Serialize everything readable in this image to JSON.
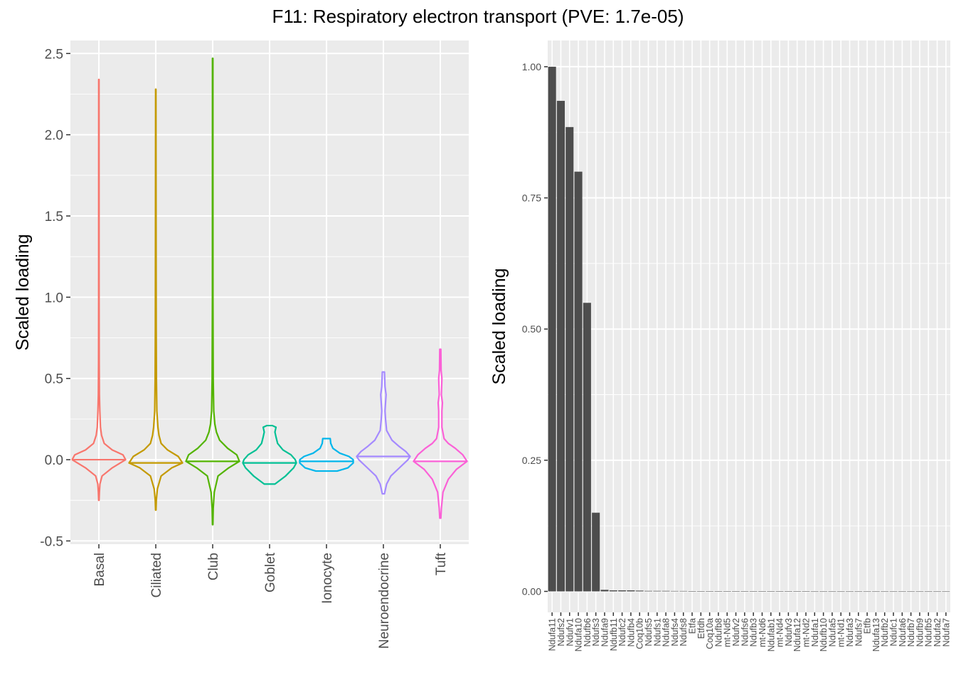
{
  "title": "F11: Respiratory electron transport (PVE: 1.7e-05)",
  "chart_data": [
    {
      "type": "violin",
      "ylabel": "Scaled loading",
      "xlabel": "",
      "ylim": [
        -0.52,
        2.58
      ],
      "yticks": [
        -0.5,
        0.0,
        0.5,
        1.0,
        1.5,
        2.0,
        2.5
      ],
      "ytick_labels": [
        "-0.5",
        "0.0",
        "0.5",
        "1.0",
        "1.5",
        "2.0",
        "2.5"
      ],
      "grid": true,
      "legend": "none",
      "categories": [
        "Basal",
        "Ciliated",
        "Club",
        "Goblet",
        "Ionocyte",
        "Neuroendocrine",
        "Tuft"
      ],
      "colors": [
        "#F8766D",
        "#C49A00",
        "#53B400",
        "#00C094",
        "#00B6EB",
        "#A58AFF",
        "#FB61D7"
      ],
      "violins": [
        {
          "category": "Basal",
          "min": -0.25,
          "max": 2.34,
          "median": 0.0,
          "profile": [
            [
              -0.25,
              0.004
            ],
            [
              -0.2,
              0.01
            ],
            [
              -0.15,
              0.02
            ],
            [
              -0.1,
              0.06
            ],
            [
              -0.05,
              0.25
            ],
            [
              0.0,
              0.5
            ],
            [
              0.03,
              0.45
            ],
            [
              0.06,
              0.25
            ],
            [
              0.1,
              0.1
            ],
            [
              0.15,
              0.05
            ],
            [
              0.2,
              0.03
            ],
            [
              0.3,
              0.018
            ],
            [
              0.4,
              0.01
            ],
            [
              0.6,
              0.006
            ],
            [
              1.0,
              0.004
            ],
            [
              2.34,
              0.003
            ]
          ]
        },
        {
          "category": "Ciliated",
          "min": -0.31,
          "max": 2.28,
          "median": -0.02,
          "profile": [
            [
              -0.31,
              0.004
            ],
            [
              -0.25,
              0.01
            ],
            [
              -0.18,
              0.03
            ],
            [
              -0.1,
              0.1
            ],
            [
              -0.05,
              0.3
            ],
            [
              -0.02,
              0.5
            ],
            [
              0.02,
              0.42
            ],
            [
              0.06,
              0.22
            ],
            [
              0.1,
              0.1
            ],
            [
              0.15,
              0.06
            ],
            [
              0.2,
              0.04
            ],
            [
              0.3,
              0.02
            ],
            [
              0.5,
              0.012
            ],
            [
              0.8,
              0.008
            ],
            [
              1.3,
              0.006
            ],
            [
              2.28,
              0.003
            ]
          ]
        },
        {
          "category": "Club",
          "min": -0.4,
          "max": 2.47,
          "median": -0.01,
          "profile": [
            [
              -0.4,
              0.004
            ],
            [
              -0.3,
              0.01
            ],
            [
              -0.2,
              0.03
            ],
            [
              -0.1,
              0.1
            ],
            [
              -0.05,
              0.3
            ],
            [
              -0.01,
              0.5
            ],
            [
              0.03,
              0.45
            ],
            [
              0.07,
              0.28
            ],
            [
              0.12,
              0.13
            ],
            [
              0.17,
              0.07
            ],
            [
              0.22,
              0.04
            ],
            [
              0.3,
              0.02
            ],
            [
              0.5,
              0.01
            ],
            [
              1.0,
              0.005
            ],
            [
              2.47,
              0.004
            ]
          ]
        },
        {
          "category": "Goblet",
          "min": -0.15,
          "max": 0.21,
          "median": -0.02,
          "profile": [
            [
              -0.15,
              0.1
            ],
            [
              -0.1,
              0.3
            ],
            [
              -0.05,
              0.45
            ],
            [
              -0.02,
              0.5
            ],
            [
              0.0,
              0.48
            ],
            [
              0.03,
              0.4
            ],
            [
              0.06,
              0.25
            ],
            [
              0.1,
              0.15
            ],
            [
              0.14,
              0.12
            ],
            [
              0.17,
              0.1
            ],
            [
              0.2,
              0.12
            ],
            [
              0.21,
              0.05
            ]
          ]
        },
        {
          "category": "Ionocyte",
          "min": -0.07,
          "max": 0.13,
          "median": -0.01,
          "profile": [
            [
              -0.07,
              0.2
            ],
            [
              -0.05,
              0.4
            ],
            [
              -0.02,
              0.5
            ],
            [
              0.0,
              0.5
            ],
            [
              0.02,
              0.42
            ],
            [
              0.04,
              0.25
            ],
            [
              0.07,
              0.12
            ],
            [
              0.1,
              0.08
            ],
            [
              0.13,
              0.07
            ]
          ]
        },
        {
          "category": "Neuroendocrine",
          "min": -0.21,
          "max": 0.54,
          "median": 0.02,
          "profile": [
            [
              -0.21,
              0.02
            ],
            [
              -0.15,
              0.06
            ],
            [
              -0.1,
              0.14
            ],
            [
              -0.05,
              0.3
            ],
            [
              0.0,
              0.46
            ],
            [
              0.02,
              0.5
            ],
            [
              0.05,
              0.42
            ],
            [
              0.08,
              0.3
            ],
            [
              0.12,
              0.16
            ],
            [
              0.18,
              0.06
            ],
            [
              0.25,
              0.04
            ],
            [
              0.3,
              0.03
            ],
            [
              0.35,
              0.04
            ],
            [
              0.4,
              0.05
            ],
            [
              0.45,
              0.03
            ],
            [
              0.54,
              0.02
            ]
          ]
        },
        {
          "category": "Tuft",
          "min": -0.36,
          "max": 0.68,
          "median": -0.01,
          "profile": [
            [
              -0.36,
              0.01
            ],
            [
              -0.3,
              0.02
            ],
            [
              -0.2,
              0.05
            ],
            [
              -0.12,
              0.15
            ],
            [
              -0.06,
              0.3
            ],
            [
              -0.01,
              0.5
            ],
            [
              0.03,
              0.42
            ],
            [
              0.07,
              0.28
            ],
            [
              0.1,
              0.15
            ],
            [
              0.13,
              0.07
            ],
            [
              0.2,
              0.03
            ],
            [
              0.3,
              0.03
            ],
            [
              0.35,
              0.04
            ],
            [
              0.4,
              0.02
            ],
            [
              0.5,
              0.03
            ],
            [
              0.55,
              0.015
            ],
            [
              0.68,
              0.01
            ]
          ]
        }
      ]
    },
    {
      "type": "bar",
      "ylabel": "Scaled loading",
      "xlabel": "",
      "ylim": [
        -0.04,
        1.05
      ],
      "yticks": [
        0.0,
        0.25,
        0.5,
        0.75,
        1.0
      ],
      "ytick_labels": [
        "0.00",
        "0.25",
        "0.50",
        "0.75",
        "1.00"
      ],
      "grid": true,
      "legend": "none",
      "bar_color": "#4d4d4d",
      "categories": [
        "Ndufa11",
        "Ndufs2",
        "Ndufv1",
        "Ndufa10",
        "Ndufb6",
        "Ndufs3",
        "Ndufa9",
        "Ndufb11",
        "Ndufc2",
        "Ndufb4",
        "Coq10b",
        "Ndufs5",
        "Ndufs1",
        "Ndufa8",
        "Ndufs4",
        "Ndufs8",
        "Etfa",
        "Etfdh",
        "Coq10a",
        "Ndufb8",
        "mt-Nd5",
        "Ndufv2",
        "Ndufs6",
        "Ndufb3",
        "mt-Nd6",
        "Ndufab1",
        "mt-Nd4",
        "Ndufv3",
        "Ndufa12",
        "mt-Nd2",
        "Ndufa1",
        "Ndufb10",
        "Ndufa5",
        "mt-Nd1",
        "Ndufa3",
        "Ndufs7",
        "Etfb",
        "Ndufa13",
        "Ndufb2",
        "Ndufc1",
        "Ndufa6",
        "Ndufb7",
        "Ndufb9",
        "Ndufb5",
        "Ndufa2",
        "Ndufa7"
      ],
      "values": [
        1.0,
        0.935,
        0.885,
        0.8,
        0.55,
        0.15,
        0.003,
        0.002,
        0.002,
        0.002,
        0.0015,
        0.001,
        0.001,
        0.001,
        0.0008,
        0.0008,
        0.0006,
        0.0005,
        0.0004,
        0.0003,
        0.0003,
        0.0002,
        0.0002,
        0.0002,
        0.0001,
        0.0001,
        0.0001,
        0.0001,
        0.0001,
        0.0001,
        0,
        0,
        0,
        0,
        0,
        0,
        0,
        0,
        0,
        0,
        0,
        0,
        0,
        0,
        0,
        0
      ]
    }
  ]
}
